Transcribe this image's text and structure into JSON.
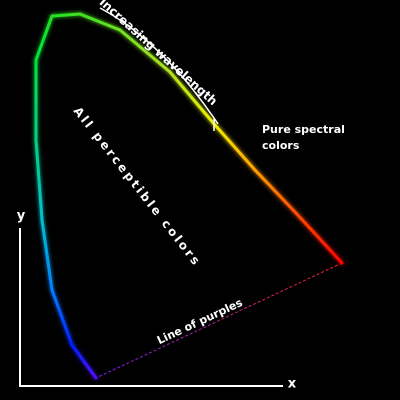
{
  "annotations": {
    "wavelength": "Increasing wavelength",
    "spectral": [
      "Pure spectral",
      "colors"
    ],
    "perceptible": "All perceptible colors",
    "purples": "Line of purples"
  },
  "axes": {
    "x": "x",
    "y": "y"
  }
}
